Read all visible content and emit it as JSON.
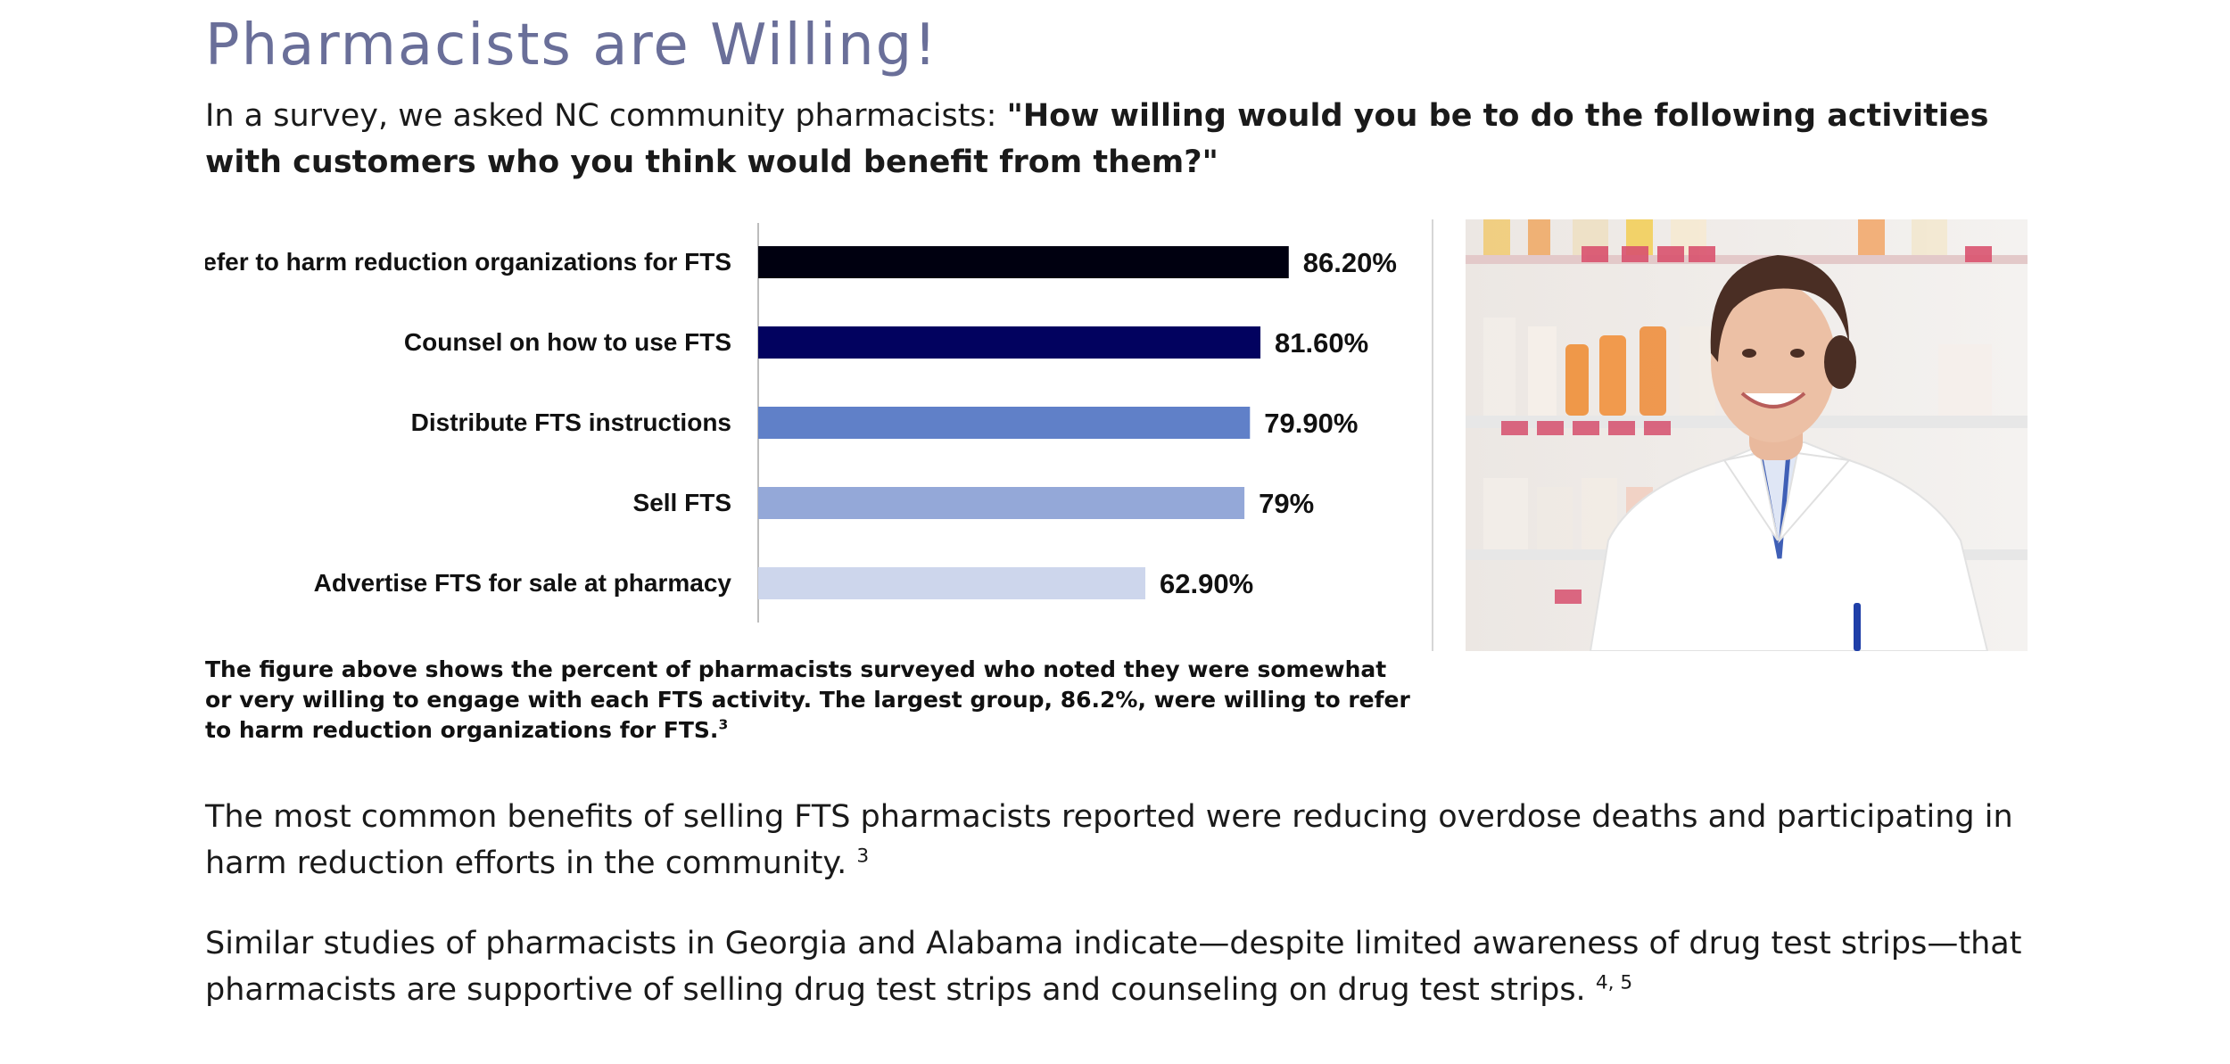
{
  "page": {
    "title": "Pharmacists are Willing!",
    "intro_prefix": "In a survey, we asked NC community pharmacists: ",
    "intro_question": "\"How willing would you be to do the following activities with customers who you think would benefit from them?\"",
    "caption_text": "The figure above shows the percent of pharmacists surveyed who noted they were somewhat or very willing to engage with each FTS activity. The largest group, 86.2%, were willing to refer to harm reduction organizations for FTS.",
    "caption_ref": "3",
    "paragraph1_text": "The most common benefits of selling FTS pharmacists reported were reducing overdose deaths and participating in harm reduction efforts in the community.",
    "paragraph1_ref": "3",
    "paragraph2_text": "Similar studies of pharmacists in Georgia and Alabama indicate—despite limited awareness of drug test strips—that pharmacists are supportive of selling drug test strips and counseling on drug test strips.",
    "paragraph2_ref": "4, 5"
  },
  "chart_data": {
    "type": "bar",
    "orientation": "horizontal",
    "categories": [
      "Refer to harm reduction organizations for FTS",
      "Counsel on how to use FTS",
      "Distribute FTS instructions",
      "Sell FTS",
      "Advertise FTS for sale at pharmacy"
    ],
    "values": [
      86.2,
      81.6,
      79.9,
      79,
      62.9
    ],
    "value_labels": [
      "86.20%",
      "81.60%",
      "79.90%",
      "79%",
      "62.90%"
    ],
    "colors": [
      "#000010",
      "#02025f",
      "#6080c8",
      "#94a8d8",
      "#cdd6ec"
    ],
    "xlim": [
      0,
      100
    ],
    "grid": false,
    "legend": "none"
  }
}
